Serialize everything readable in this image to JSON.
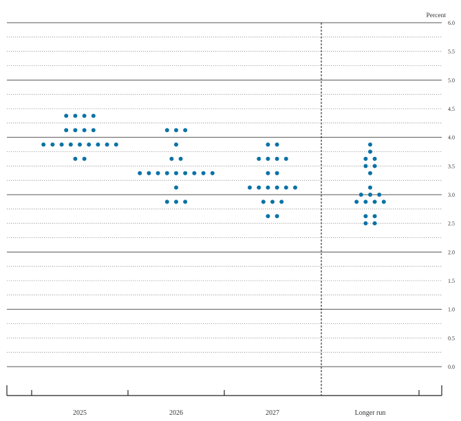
{
  "chart_data": {
    "type": "scatter",
    "unit_label": "Percent",
    "ylim": [
      0,
      6
    ],
    "y_ticks": [
      "0.0",
      "0.5",
      "1.0",
      "1.5",
      "2.0",
      "2.5",
      "3.0",
      "3.5",
      "4.0",
      "4.5",
      "5.0",
      "5.5",
      "6.0"
    ],
    "categories": [
      "2025",
      "2026",
      "2027",
      "Longer run"
    ],
    "grid": true,
    "dot_color": "#0b72a6",
    "series": [
      {
        "category": "2025",
        "points": [
          {
            "y": 4.375,
            "count": 4
          },
          {
            "y": 4.125,
            "count": 4
          },
          {
            "y": 3.875,
            "count": 9
          },
          {
            "y": 3.625,
            "count": 2
          }
        ]
      },
      {
        "category": "2026",
        "points": [
          {
            "y": 4.125,
            "count": 3
          },
          {
            "y": 3.875,
            "count": 1
          },
          {
            "y": 3.625,
            "count": 2
          },
          {
            "y": 3.375,
            "count": 9
          },
          {
            "y": 3.125,
            "count": 1
          },
          {
            "y": 2.875,
            "count": 3
          }
        ]
      },
      {
        "category": "2027",
        "points": [
          {
            "y": 3.875,
            "count": 2
          },
          {
            "y": 3.625,
            "count": 4
          },
          {
            "y": 3.375,
            "count": 2
          },
          {
            "y": 3.125,
            "count": 6
          },
          {
            "y": 2.875,
            "count": 3
          },
          {
            "y": 2.625,
            "count": 2
          }
        ]
      },
      {
        "category": "Longer run",
        "points": [
          {
            "y": 3.875,
            "count": 1
          },
          {
            "y": 3.75,
            "count": 1
          },
          {
            "y": 3.625,
            "count": 2
          },
          {
            "y": 3.5,
            "count": 2
          },
          {
            "y": 3.375,
            "count": 1
          },
          {
            "y": 3.125,
            "count": 1
          },
          {
            "y": 3.0,
            "count": 3
          },
          {
            "y": 2.875,
            "count": 4
          },
          {
            "y": 2.625,
            "count": 2
          },
          {
            "y": 2.5,
            "count": 2
          }
        ]
      }
    ]
  }
}
